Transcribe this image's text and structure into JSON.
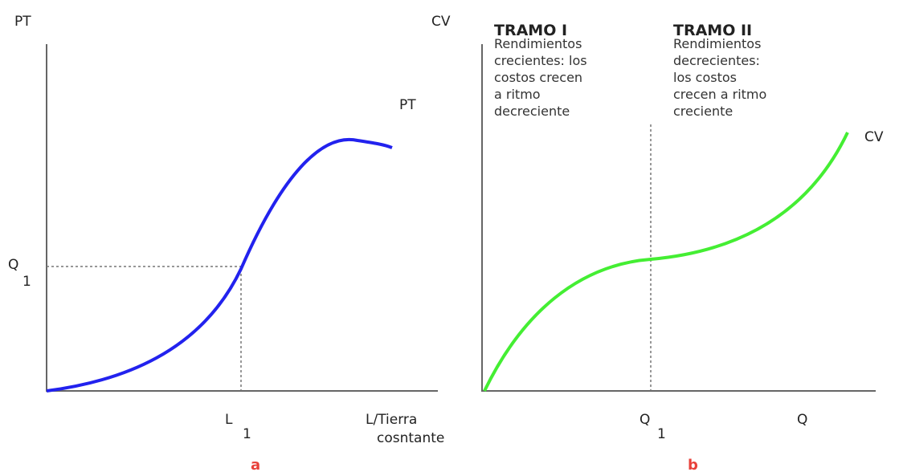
{
  "panel_a": {
    "y_label": "PT",
    "curve_label": "PT",
    "q_mark": {
      "label": "Q",
      "sub": "1"
    },
    "l_mark": {
      "label": "L",
      "sub": "1"
    },
    "x_label": [
      "L/Tierra",
      "cosntante"
    ],
    "caption": "a"
  },
  "panel_b": {
    "y_label": "CV",
    "curve_label": "CV",
    "tramo_1": {
      "title": "TRAMO I",
      "lines": [
        "Rendimientos",
        "crecientes: los",
        "costos crecen",
        "a ritmo",
        "decreciente"
      ]
    },
    "tramo_2": {
      "title": "TRAMO II",
      "lines": [
        "Rendimientos",
        "decrecientes:",
        "los costos",
        "crecen a ritmo",
        "creciente"
      ]
    },
    "q1_mark": {
      "label": "Q",
      "sub": "1"
    },
    "x_label": "Q",
    "caption": "b"
  }
}
